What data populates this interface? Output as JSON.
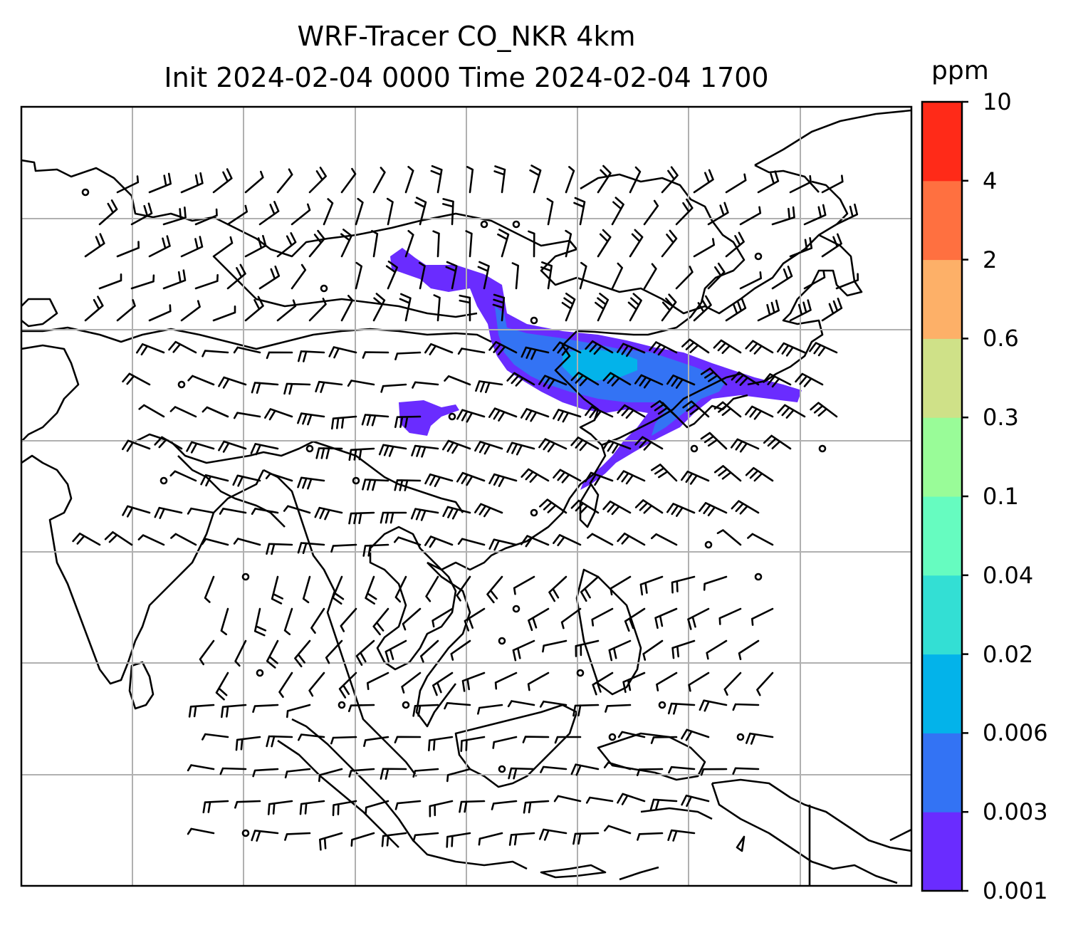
{
  "title": {
    "line1": "WRF-Tracer CO_NKR 4km",
    "line2": "Init 2024-02-04 0000 Time 2024-02-04 1700"
  },
  "colorbar": {
    "unit": "ppm",
    "levels": [
      "0.001",
      "0.003",
      "0.006",
      "0.02",
      "0.04",
      "0.1",
      "0.3",
      "0.6",
      "2",
      "4",
      "10"
    ],
    "colors": [
      "#6a2cff",
      "#3373f4",
      "#03b3ea",
      "#33dfd4",
      "#66fcc0",
      "#99fc98",
      "#cfe188",
      "#fdb068",
      "#ff7040",
      "#ff2a18"
    ]
  },
  "map": {
    "grid_lines": true,
    "wind_barbs": true,
    "tracer_plume_colors": [
      "#6a2cff",
      "#3373f4",
      "#03b3ea"
    ]
  }
}
